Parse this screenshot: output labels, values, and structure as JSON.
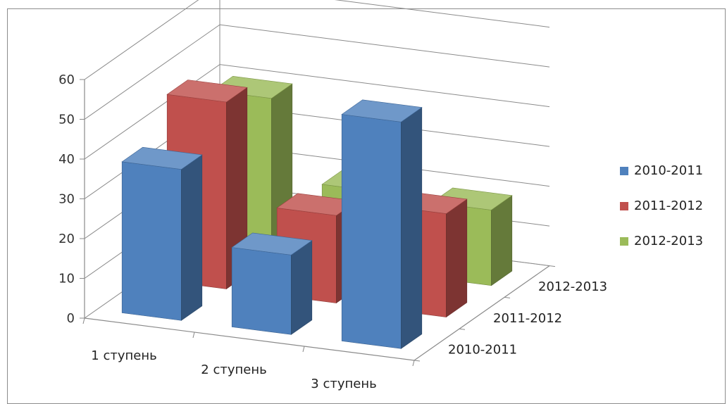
{
  "chart_data": {
    "type": "bar",
    "categories": [
      "1 ступень",
      "2 ступень",
      "3 ступень"
    ],
    "depth_labels": [
      "2010-2011",
      "2011-2012",
      "2012-2013"
    ],
    "series": [
      {
        "name": "2010-2011",
        "values": [
          38,
          20,
          57
        ],
        "color": "#4F81BD"
      },
      {
        "name": "2011-2012",
        "values": [
          47,
          22,
          26
        ],
        "color": "#C0504D"
      },
      {
        "name": "2012-2013",
        "values": [
          40,
          20,
          19
        ],
        "color": "#9BBB59"
      }
    ],
    "y_ticks": [
      "0",
      "10",
      "20",
      "30",
      "40",
      "50",
      "60"
    ],
    "ylim": [
      0,
      60
    ],
    "grid": true,
    "legend": "right",
    "title": "",
    "xlabel": "",
    "ylabel": ""
  }
}
